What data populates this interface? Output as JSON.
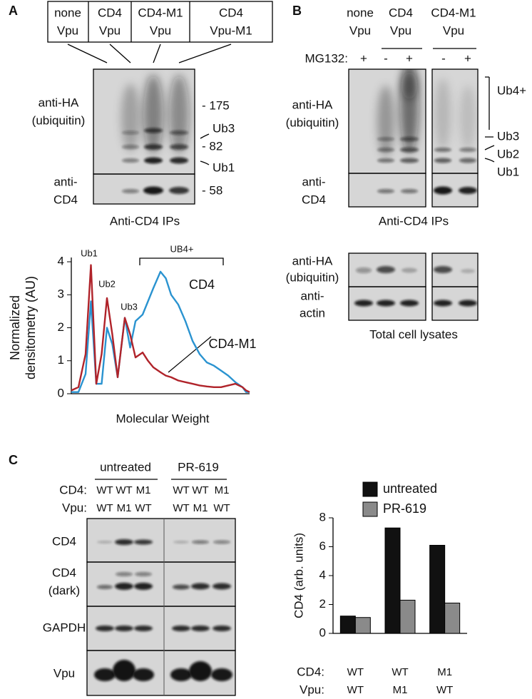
{
  "panel_a": {
    "letter": "A",
    "lanes": [
      [
        "none",
        "Vpu"
      ],
      [
        "CD4",
        "Vpu"
      ],
      [
        "CD4-M1",
        "Vpu"
      ],
      [
        "CD4",
        "Vpu-M1"
      ]
    ],
    "ha_label": [
      "anti-HA",
      "(ubiquitin)"
    ],
    "cd4_label": [
      "anti-",
      "CD4"
    ],
    "markers": [
      "- 175",
      "Ub3",
      "- 82",
      "Ub1",
      "- 58"
    ],
    "caption": "Anti-CD4 IPs"
  },
  "panel_b": {
    "letter": "B",
    "lanes": [
      [
        "none",
        "Vpu"
      ],
      [
        "CD4",
        "Vpu"
      ],
      [
        "CD4-M1",
        "Vpu"
      ]
    ],
    "treatment": "MG132:",
    "treatment_marks": [
      "+",
      "-",
      "+",
      "-",
      "+"
    ],
    "ha_label": [
      "anti-HA",
      "(ubiquitin)"
    ],
    "cd4_label": [
      "anti-",
      "CD4"
    ],
    "markers": [
      "Ub4+",
      "Ub3",
      "Ub2",
      "Ub1"
    ],
    "caption": "Anti-CD4 IPs",
    "lysate_labels": [
      "anti-HA",
      "(ubiquitin)",
      "anti-",
      "actin"
    ],
    "lysate_caption": "Total cell lysates"
  },
  "panel_c": {
    "letter": "C",
    "groups": [
      "untreated",
      "PR-619"
    ],
    "row_labels": [
      "CD4:",
      "Vpu:"
    ],
    "cd4": [
      "WT",
      "WT",
      "M1",
      "WT",
      "WT",
      "M1"
    ],
    "vpu": [
      "WT",
      "M1",
      "WT",
      "WT",
      "M1",
      "WT"
    ],
    "blot_labels": [
      "CD4",
      "CD4",
      "(dark)",
      "GAPDH",
      "Vpu"
    ]
  },
  "chart_data": [
    {
      "type": "line",
      "y_label": [
        "Normalized",
        "densitometry (AU)"
      ],
      "x_label": "Molecular Weight",
      "annotations": [
        "Ub1",
        "Ub2",
        "Ub3",
        "UB4+"
      ],
      "x": [
        0,
        4,
        8,
        11,
        14,
        17,
        20,
        23,
        26,
        30,
        33,
        36,
        40,
        43,
        46,
        50,
        53,
        56,
        60,
        64,
        68,
        72,
        76,
        80,
        84,
        88,
        92,
        96,
        98,
        100
      ],
      "xlim": [
        0,
        100
      ],
      "ylim": [
        0,
        4
      ],
      "yticks": [
        0,
        1,
        2,
        3,
        4
      ],
      "series": [
        {
          "name": "CD4",
          "color": "#2a93d0",
          "values": [
            0.05,
            0.05,
            0.6,
            2.8,
            0.3,
            0.3,
            2.0,
            1.5,
            0.5,
            2.3,
            1.4,
            2.2,
            2.4,
            2.8,
            3.2,
            3.7,
            3.5,
            3.0,
            2.7,
            2.2,
            1.6,
            1.2,
            0.95,
            0.85,
            0.7,
            0.55,
            0.35,
            0.2,
            0.05,
            0.05
          ]
        },
        {
          "name": "CD4-M1",
          "color": "#b0232a",
          "values": [
            0.1,
            0.2,
            1.2,
            3.9,
            0.3,
            1.2,
            2.9,
            1.8,
            0.5,
            2.3,
            1.8,
            1.1,
            1.25,
            1.0,
            0.8,
            0.65,
            0.55,
            0.5,
            0.4,
            0.35,
            0.3,
            0.25,
            0.22,
            0.2,
            0.2,
            0.25,
            0.3,
            0.2,
            0.1,
            0.05
          ]
        }
      ]
    },
    {
      "type": "bar",
      "y_label": "CD4 (arb. units)",
      "ylim": [
        0,
        8
      ],
      "yticks": [
        0,
        2,
        4,
        6,
        8
      ],
      "category_rows": [
        {
          "label": "CD4:",
          "values": [
            "WT",
            "WT",
            "M1"
          ]
        },
        {
          "label": "Vpu:",
          "values": [
            "WT",
            "M1",
            "WT"
          ]
        }
      ],
      "label_colors": {
        "WT": "#3b5aa3",
        "M1": "#b3282d"
      },
      "series": [
        {
          "name": "untreated",
          "color": "#111111",
          "values": [
            1.2,
            7.3,
            6.1
          ]
        },
        {
          "name": "PR-619",
          "color": "#8a8a8a",
          "values": [
            1.1,
            2.3,
            2.1
          ]
        }
      ]
    }
  ]
}
